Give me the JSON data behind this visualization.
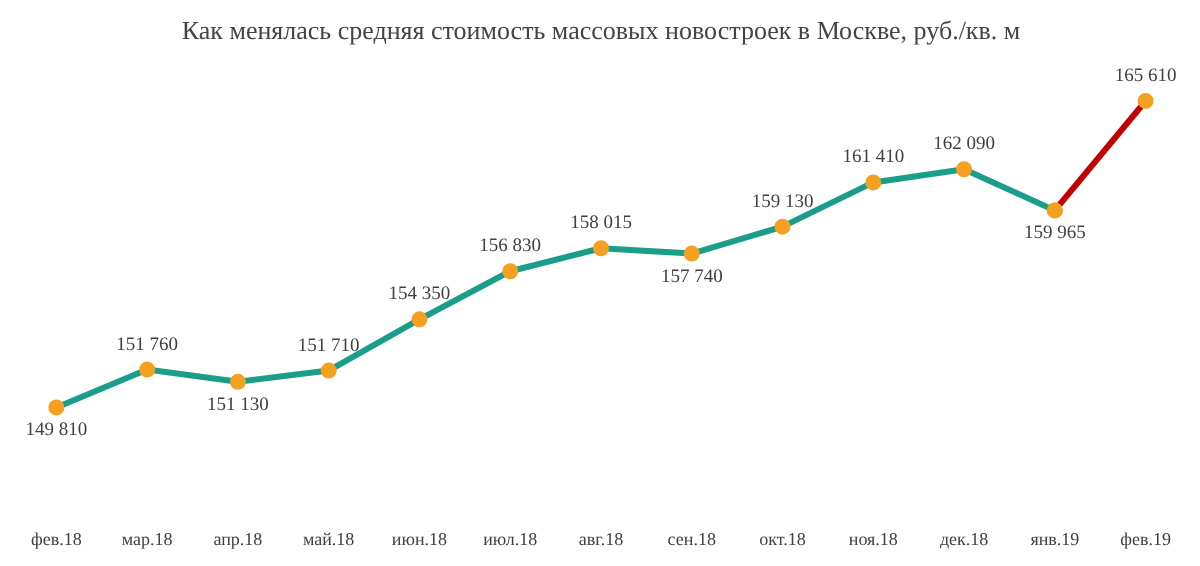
{
  "chart_data": {
    "type": "line",
    "title": "Как менялась средняя стоимость массовых новостроек в Москве, руб./кв. м",
    "categories": [
      "фев.18",
      "мар.18",
      "апр.18",
      "май.18",
      "июн.18",
      "июл.18",
      "авг.18",
      "сен.18",
      "окт.18",
      "ноя.18",
      "дек.18",
      "янв.19",
      "фев.19"
    ],
    "series": [
      {
        "color": "#1a9e8a",
        "values": [
          149810,
          151760,
          151130,
          151710,
          154350,
          156830,
          158015,
          157740,
          159130,
          161410,
          162090,
          159965,
          null
        ],
        "value_labels": [
          "149 810",
          "151 760",
          "151 130",
          "151 710",
          "154 350",
          "156 830",
          "158 015",
          "157 740",
          "159 130",
          "161 410",
          "162 090",
          "159 965",
          null
        ]
      },
      {
        "color": "#c00000",
        "values": [
          null,
          null,
          null,
          null,
          null,
          null,
          null,
          null,
          null,
          null,
          null,
          159965,
          165610
        ],
        "value_labels": [
          null,
          null,
          null,
          null,
          null,
          null,
          null,
          null,
          null,
          null,
          null,
          null,
          "165 610"
        ]
      }
    ],
    "marker": "circle",
    "grid": false
  }
}
